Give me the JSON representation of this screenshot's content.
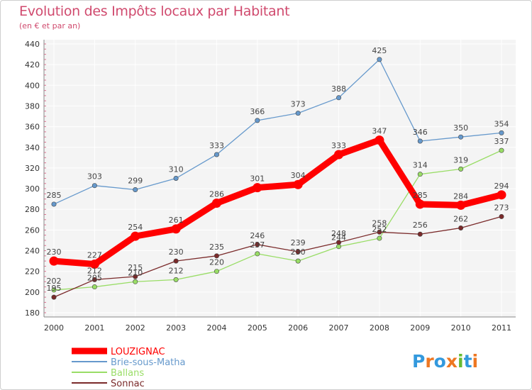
{
  "chart_data": {
    "type": "line",
    "title": "Evolution des Impôts locaux par Habitant",
    "subtitle": "(en € et par an)",
    "xlabel": "",
    "ylabel": "",
    "categories": [
      "2000",
      "2001",
      "2002",
      "2003",
      "2004",
      "2005",
      "2006",
      "2007",
      "2008",
      "2009",
      "2010",
      "2011"
    ],
    "ylim": [
      180,
      440
    ],
    "yticks": [
      180,
      200,
      220,
      240,
      260,
      280,
      300,
      320,
      340,
      360,
      380,
      400,
      420,
      440
    ],
    "grid": true,
    "legend_position": "bottom-left",
    "series": [
      {
        "name": "LOUZIGNAC",
        "color": "#ff0000",
        "values": [
          230,
          227,
          254,
          261,
          286,
          301,
          304,
          333,
          347,
          285,
          284,
          294
        ]
      },
      {
        "name": "Brie-sous-Matha",
        "color": "#6699cc",
        "values": [
          285,
          303,
          299,
          310,
          333,
          366,
          373,
          388,
          425,
          346,
          350,
          354
        ]
      },
      {
        "name": "Ballans",
        "color": "#99dd66",
        "values": [
          202,
          205,
          210,
          212,
          220,
          237,
          230,
          244,
          252,
          314,
          319,
          337
        ]
      },
      {
        "name": "Sonnac",
        "color": "#7a2a2a",
        "values": [
          195,
          212,
          215,
          230,
          235,
          246,
          239,
          248,
          258,
          256,
          262,
          273
        ]
      }
    ]
  },
  "brand": {
    "text": "Proxiti",
    "letters": [
      "P",
      "r",
      "o",
      "x",
      "i",
      "t",
      "i"
    ],
    "colors": [
      "#3399dd",
      "#ee7722",
      "#3399dd",
      "#ee7722",
      "#66bb33",
      "#3399dd",
      "#ee7722"
    ]
  }
}
